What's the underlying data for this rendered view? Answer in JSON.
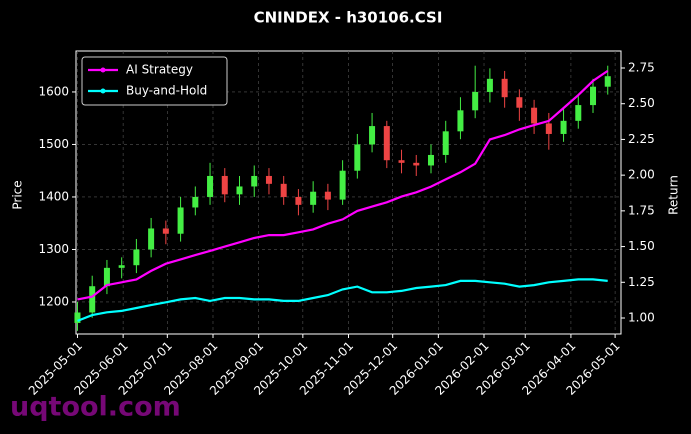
{
  "chart_data": {
    "type": "candlestick",
    "title": "CNINDEX - h30106.CSI",
    "watermark": "uqtool.com",
    "ylabel": "Price",
    "y2label": "Return",
    "x": [
      "2025-05-01",
      "2025-05-11",
      "2025-05-21",
      "2025-05-31",
      "2025-06-10",
      "2025-06-20",
      "2025-06-30",
      "2025-07-10",
      "2025-07-20",
      "2025-07-30",
      "2025-08-09",
      "2025-08-19",
      "2025-08-29",
      "2025-09-08",
      "2025-09-18",
      "2025-09-28",
      "2025-10-08",
      "2025-10-18",
      "2025-10-28",
      "2025-11-07",
      "2025-11-17",
      "2025-11-27",
      "2025-12-07",
      "2025-12-17",
      "2025-12-27",
      "2026-01-06",
      "2026-01-16",
      "2026-01-26",
      "2026-02-05",
      "2026-02-15",
      "2026-02-25",
      "2026-03-07",
      "2026-03-17",
      "2026-03-27",
      "2026-04-06",
      "2026-04-16",
      "2026-04-26"
    ],
    "open": [
      1160,
      1180,
      1230,
      1265,
      1270,
      1300,
      1340,
      1330,
      1380,
      1400,
      1440,
      1405,
      1420,
      1440,
      1425,
      1400,
      1385,
      1410,
      1395,
      1450,
      1500,
      1535,
      1470,
      1465,
      1460,
      1480,
      1525,
      1565,
      1600,
      1625,
      1590,
      1570,
      1540,
      1520,
      1545,
      1575,
      1610
    ],
    "high": [
      1200,
      1250,
      1280,
      1285,
      1320,
      1360,
      1355,
      1400,
      1420,
      1465,
      1455,
      1440,
      1460,
      1455,
      1440,
      1415,
      1430,
      1425,
      1470,
      1520,
      1560,
      1545,
      1490,
      1480,
      1500,
      1545,
      1590,
      1650,
      1645,
      1640,
      1605,
      1585,
      1560,
      1570,
      1595,
      1625,
      1650
    ],
    "low": [
      1145,
      1170,
      1215,
      1245,
      1255,
      1285,
      1310,
      1315,
      1365,
      1385,
      1390,
      1385,
      1400,
      1405,
      1385,
      1365,
      1370,
      1375,
      1385,
      1435,
      1485,
      1455,
      1445,
      1440,
      1445,
      1465,
      1510,
      1550,
      1580,
      1570,
      1545,
      1520,
      1490,
      1505,
      1530,
      1560,
      1595
    ],
    "close": [
      1180,
      1230,
      1265,
      1270,
      1300,
      1340,
      1330,
      1380,
      1400,
      1440,
      1405,
      1420,
      1440,
      1425,
      1400,
      1385,
      1410,
      1395,
      1450,
      1500,
      1535,
      1470,
      1465,
      1460,
      1480,
      1525,
      1565,
      1600,
      1625,
      1590,
      1570,
      1540,
      1520,
      1545,
      1575,
      1610,
      1630
    ],
    "up_color": "#44ee44",
    "down_color": "#ee4444",
    "series": [
      {
        "name": "AI Strategy",
        "color": "#ff00ff",
        "axis": "y2",
        "values": [
          1.13,
          1.15,
          1.23,
          1.25,
          1.27,
          1.33,
          1.38,
          1.41,
          1.44,
          1.47,
          1.5,
          1.53,
          1.56,
          1.58,
          1.58,
          1.6,
          1.62,
          1.66,
          1.69,
          1.75,
          1.78,
          1.81,
          1.85,
          1.88,
          1.92,
          1.97,
          2.02,
          2.08,
          2.25,
          2.28,
          2.32,
          2.35,
          2.38,
          2.47,
          2.56,
          2.66,
          2.73
        ]
      },
      {
        "name": "Buy-and-Hold",
        "color": "#00ffff",
        "axis": "y2",
        "values": [
          0.98,
          1.02,
          1.04,
          1.05,
          1.07,
          1.09,
          1.11,
          1.13,
          1.14,
          1.12,
          1.14,
          1.14,
          1.13,
          1.13,
          1.12,
          1.12,
          1.14,
          1.16,
          1.2,
          1.22,
          1.18,
          1.18,
          1.19,
          1.21,
          1.22,
          1.23,
          1.26,
          1.26,
          1.25,
          1.24,
          1.22,
          1.23,
          1.25,
          1.26,
          1.27,
          1.27,
          1.26
        ]
      }
    ],
    "xlim": [
      "2025-04-30",
      "2026-05-05"
    ],
    "xticks": [
      "2025-05-01",
      "2025-06-01",
      "2025-07-01",
      "2025-08-01",
      "2025-09-01",
      "2025-10-01",
      "2025-11-01",
      "2025-12-01",
      "2026-01-01",
      "2026-02-01",
      "2026-03-01",
      "2026-04-01",
      "2026-05-01"
    ],
    "ylim": [
      1139,
      1678
    ],
    "yticks": [
      1200,
      1300,
      1400,
      1500,
      1600
    ],
    "y2lim": [
      0.888,
      2.869
    ],
    "y2ticks": [
      {
        "value": 1,
        "label": "1.00"
      },
      1.25,
      {
        "value": 1.5,
        "label": "1.50"
      },
      1.75,
      {
        "value": 2,
        "label": "2.00"
      },
      2.25,
      {
        "value": 2.5,
        "label": "2.50"
      },
      2.75
    ],
    "grid": true,
    "legend": "upper left"
  }
}
